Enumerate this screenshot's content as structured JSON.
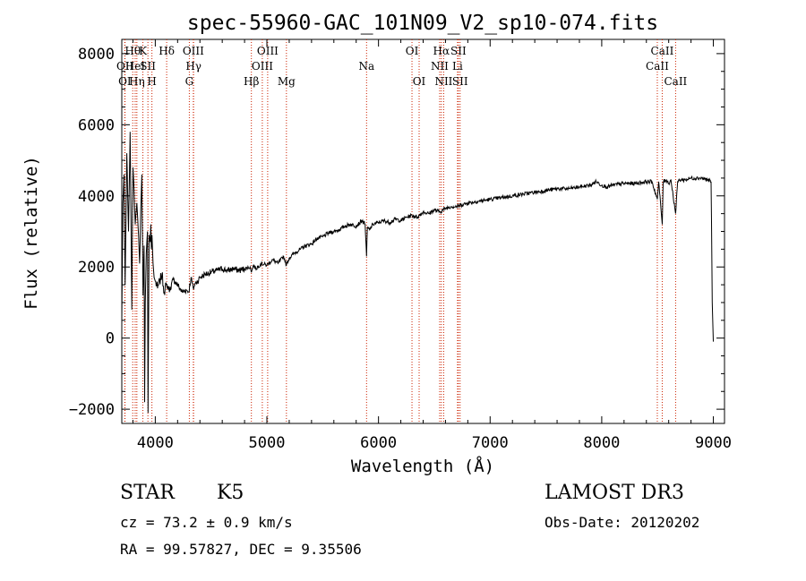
{
  "chart_data": {
    "type": "line",
    "title": "spec-55960-GAC_101N09_V2_sp10-074.fits",
    "xlabel": "Wavelength (Å)",
    "ylabel": "Flux (relative)",
    "xlim": [
      3700,
      9100
    ],
    "ylim": [
      -2400,
      8400
    ],
    "x_ticks": [
      4000,
      5000,
      6000,
      7000,
      8000,
      9000
    ],
    "y_ticks": [
      -2000,
      0,
      2000,
      4000,
      6000,
      8000
    ],
    "x_tick_labels": [
      "4000",
      "5000",
      "6000",
      "7000",
      "8000",
      "9000"
    ],
    "y_tick_labels": [
      "−2000",
      "0",
      "2000",
      "4000",
      "6000",
      "8000"
    ],
    "series": [
      {
        "name": "flux",
        "x": [
          3700,
          3710,
          3720,
          3730,
          3745,
          3760,
          3775,
          3790,
          3800,
          3810,
          3820,
          3835,
          3850,
          3860,
          3870,
          3880,
          3890,
          3900,
          3905,
          3910,
          3920,
          3930,
          3935,
          3945,
          3955,
          3960,
          3965,
          3970,
          3980,
          3990,
          4000,
          4020,
          4040,
          4060,
          4080,
          4100,
          4130,
          4160,
          4200,
          4240,
          4280,
          4300,
          4320,
          4340,
          4360,
          4380,
          4400,
          4450,
          4500,
          4550,
          4600,
          4650,
          4700,
          4750,
          4800,
          4850,
          4861,
          4880,
          4900,
          4950,
          5000,
          5050,
          5100,
          5150,
          5175,
          5200,
          5250,
          5300,
          5350,
          5400,
          5450,
          5500,
          5550,
          5600,
          5650,
          5700,
          5750,
          5800,
          5850,
          5880,
          5893,
          5900,
          5920,
          5950,
          6000,
          6050,
          6100,
          6150,
          6200,
          6250,
          6300,
          6350,
          6400,
          6450,
          6500,
          6550,
          6600,
          6650,
          6700,
          6750,
          6800,
          6900,
          7000,
          7100,
          7200,
          7300,
          7400,
          7500,
          7600,
          7700,
          7800,
          7900,
          7950,
          8000,
          8050,
          8100,
          8200,
          8300,
          8400,
          8450,
          8498,
          8510,
          8542,
          8550,
          8580,
          8600,
          8620,
          8662,
          8680,
          8700,
          8750,
          8800,
          8850,
          8900,
          8950,
          8980,
          8990,
          9000
        ],
        "y": [
          500,
          3800,
          4600,
          1500,
          5200,
          3000,
          5800,
          800,
          4800,
          4200,
          3200,
          3800,
          2900,
          2100,
          3600,
          4600,
          1200,
          2600,
          -1800,
          1000,
          2400,
          3000,
          -2100,
          2900,
          2700,
          3200,
          2500,
          2900,
          2100,
          1700,
          1600,
          1400,
          1600,
          1800,
          1300,
          1500,
          1350,
          1650,
          1500,
          1300,
          1350,
          1300,
          1700,
          1400,
          1550,
          1600,
          1700,
          1800,
          1850,
          1900,
          1950,
          1900,
          1950,
          1900,
          1950,
          2000,
          1850,
          2050,
          1950,
          2100,
          2050,
          2200,
          2100,
          2300,
          2050,
          2250,
          2400,
          2500,
          2600,
          2650,
          2800,
          2850,
          2950,
          3000,
          3050,
          3150,
          3200,
          3150,
          3300,
          3200,
          2300,
          3100,
          3050,
          3200,
          3250,
          3300,
          3250,
          3350,
          3300,
          3400,
          3450,
          3400,
          3550,
          3500,
          3600,
          3550,
          3650,
          3700,
          3700,
          3750,
          3800,
          3850,
          3900,
          3950,
          4000,
          4050,
          4100,
          4150,
          4200,
          4200,
          4250,
          4300,
          4400,
          4300,
          4250,
          4300,
          4350,
          4350,
          4400,
          4400,
          3900,
          4400,
          3200,
          4400,
          4450,
          4350,
          4450,
          3500,
          4400,
          4450,
          4450,
          4500,
          4500,
          4500,
          4450,
          4400,
          1000,
          -100
        ]
      }
    ],
    "lines": [
      {
        "name": "OI",
        "wave": 3727,
        "row": 2
      },
      {
        "name": "OII",
        "wave": 3729,
        "row": 1
      },
      {
        "name": "Hθ",
        "wave": 3798,
        "row": 0
      },
      {
        "name": "HeI",
        "wave": 3820,
        "row": 1
      },
      {
        "name": "Hη",
        "wave": 3835,
        "row": 2
      },
      {
        "name": "K",
        "wave": 3889,
        "row": 0
      },
      {
        "name": "SII",
        "wave": 3934,
        "row": 1
      },
      {
        "name": "H",
        "wave": 3970,
        "row": 2
      },
      {
        "name": "Hδ",
        "wave": 4102,
        "row": 0
      },
      {
        "name": "OIII",
        "wave": 4341,
        "row": 0
      },
      {
        "name": "Hγ",
        "wave": 4343,
        "row": 1
      },
      {
        "name": "G",
        "wave": 4305,
        "row": 2
      },
      {
        "name": "Hβ",
        "wave": 4861,
        "row": 2
      },
      {
        "name": "OIII",
        "wave": 5007,
        "row": 0
      },
      {
        "name": "OIII",
        "wave": 4959,
        "row": 1
      },
      {
        "name": "Mg",
        "wave": 5175,
        "row": 2
      },
      {
        "name": "Na",
        "wave": 5893,
        "row": 1
      },
      {
        "name": "OI",
        "wave": 6300,
        "row": 0
      },
      {
        "name": "OI",
        "wave": 6364,
        "row": 2
      },
      {
        "name": "Hα",
        "wave": 6563,
        "row": 0
      },
      {
        "name": "NII",
        "wave": 6548,
        "row": 1
      },
      {
        "name": "NII",
        "wave": 6584,
        "row": 2
      },
      {
        "name": "SII",
        "wave": 6716,
        "row": 0
      },
      {
        "name": "Li",
        "wave": 6708,
        "row": 1
      },
      {
        "name": "SII",
        "wave": 6731,
        "row": 2
      },
      {
        "name": "CaII",
        "wave": 8542,
        "row": 0
      },
      {
        "name": "CaII",
        "wave": 8498,
        "row": 1
      },
      {
        "name": "CaII",
        "wave": 8662,
        "row": 2
      }
    ]
  },
  "info": {
    "object_class": "STAR",
    "subclass": "K5",
    "survey": "LAMOST DR3",
    "redshift": "cz = 73.2 ± 0.9 km/s",
    "obs_date": "Obs-Date: 20120202",
    "coords": "RA =  99.57827, DEC =   9.35506"
  },
  "colors": {
    "spectrum": "#000000",
    "line_markers": "#cc2200",
    "axes": "#000000",
    "background": "#ffffff"
  }
}
